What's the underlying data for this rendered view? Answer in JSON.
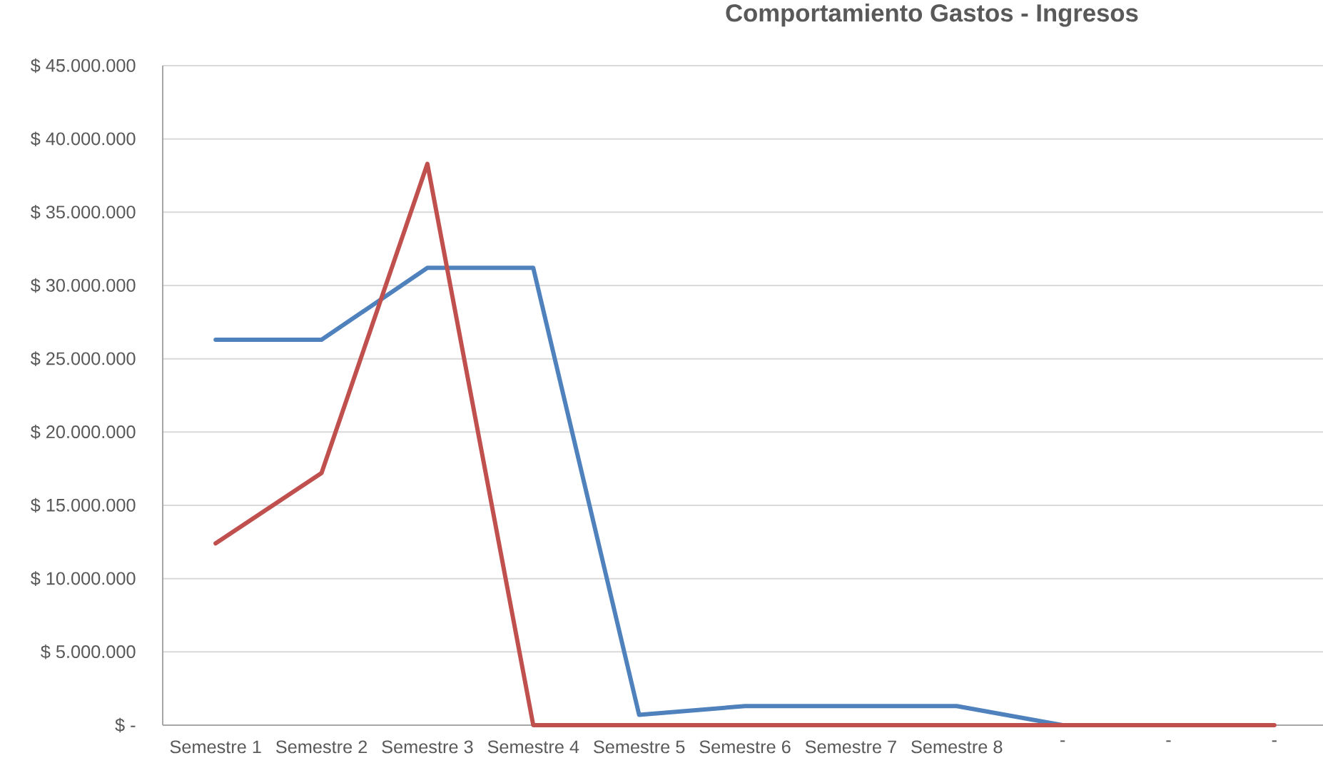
{
  "chart_data": {
    "type": "line",
    "title": "Comportamiento Gastos - Ingresos",
    "categories": [
      "Semestre 1",
      "Semestre 2",
      "Semestre 3",
      "Semestre 4",
      "Semestre 5",
      "Semestre 6",
      "Semestre 7",
      "Semestre 8",
      "-",
      "-",
      "-"
    ],
    "series": [
      {
        "color": "#4f81bd",
        "values": [
          26300000,
          26300000,
          31200000,
          31200000,
          700000,
          1300000,
          1300000,
          1300000,
          0,
          null,
          null
        ]
      },
      {
        "color": "#c0504d",
        "values": [
          12400000,
          17200000,
          38300000,
          0,
          0,
          0,
          0,
          0,
          0,
          0,
          0
        ]
      }
    ],
    "ylim": [
      0,
      45000000
    ],
    "yticks": [
      {
        "value": 0,
        "label": "$ -"
      },
      {
        "value": 5000000,
        "label": "$ 5.000.000"
      },
      {
        "value": 10000000,
        "label": "$ 10.000.000"
      },
      {
        "value": 15000000,
        "label": "$ 15.000.000"
      },
      {
        "value": 20000000,
        "label": "$ 20.000.000"
      },
      {
        "value": 25000000,
        "label": "$ 25.000.000"
      },
      {
        "value": 30000000,
        "label": "$ 30.000.000"
      },
      {
        "value": 35000000,
        "label": "$ 35.000.000"
      },
      {
        "value": 40000000,
        "label": "$ 40.000.000"
      },
      {
        "value": 45000000,
        "label": "$ 45.000.000"
      }
    ],
    "grid": "y",
    "marker": "none",
    "line_style": "solid"
  }
}
